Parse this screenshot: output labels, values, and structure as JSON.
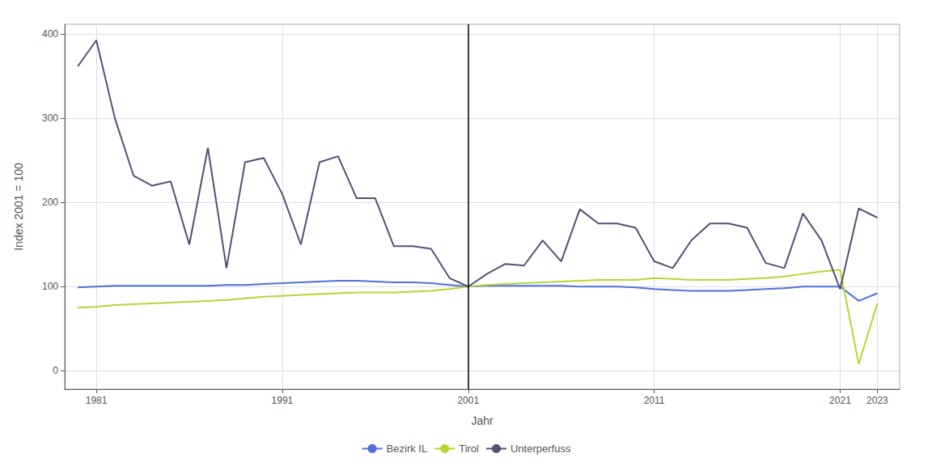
{
  "chart_data": {
    "type": "line",
    "x": [
      1980,
      1981,
      1982,
      1983,
      1984,
      1985,
      1986,
      1987,
      1988,
      1989,
      1990,
      1991,
      1992,
      1993,
      1994,
      1995,
      1996,
      1997,
      1998,
      1999,
      2000,
      2001,
      2002,
      2003,
      2004,
      2005,
      2006,
      2007,
      2008,
      2009,
      2010,
      2011,
      2012,
      2013,
      2014,
      2015,
      2016,
      2017,
      2018,
      2019,
      2020,
      2021,
      2022,
      2023
    ],
    "series": [
      {
        "name": "Bezirk IL",
        "values": [
          99,
          100,
          101,
          101,
          101,
          101,
          101,
          101,
          102,
          102,
          103,
          104,
          105,
          106,
          107,
          107,
          106,
          105,
          105,
          104,
          102,
          100,
          101,
          101,
          101,
          101,
          101,
          100,
          100,
          100,
          99,
          97,
          96,
          95,
          95,
          95,
          96,
          97,
          98,
          100,
          100,
          100,
          83,
          92
        ]
      },
      {
        "name": "Tirol",
        "values": [
          75,
          76,
          78,
          79,
          80,
          81,
          82,
          83,
          84,
          86,
          88,
          89,
          90,
          91,
          92,
          93,
          93,
          93,
          94,
          95,
          97,
          100,
          102,
          103,
          104,
          105,
          106,
          107,
          108,
          108,
          108,
          110,
          109,
          108,
          108,
          108,
          109,
          110,
          112,
          115,
          118,
          120,
          8,
          80
        ]
      },
      {
        "name": "Unterperfuss",
        "values": [
          362,
          393,
          300,
          232,
          220,
          225,
          150,
          265,
          122,
          248,
          253,
          210,
          150,
          248,
          255,
          205,
          205,
          148,
          148,
          145,
          110,
          100,
          115,
          127,
          125,
          155,
          130,
          192,
          175,
          175,
          170,
          130,
          122,
          155,
          175,
          175,
          170,
          128,
          122,
          187,
          155,
          97,
          193,
          182
        ]
      }
    ],
    "vline": 2001,
    "x_label": "Jahr",
    "y_label": "Index 2001 = 100",
    "xlim": [
      1979.3,
      2024.2
    ],
    "xticks": [
      1981,
      1991,
      2001,
      2011,
      2021,
      2023
    ],
    "ylim": [
      -22,
      412
    ],
    "yticks": [
      0,
      100,
      200,
      300,
      400
    ],
    "grid": true,
    "legend": "bottom"
  }
}
